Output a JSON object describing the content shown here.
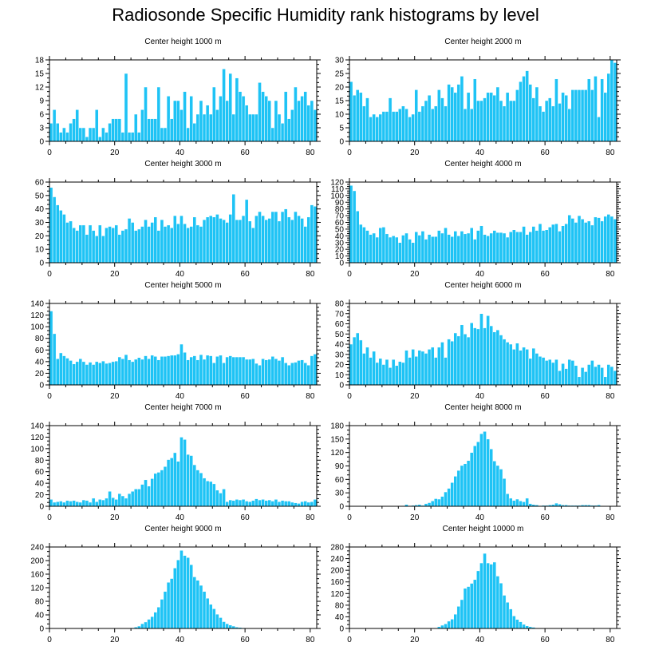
{
  "title": "Radiosonde Specific Humidity rank histograms by level",
  "colors": {
    "bar": "#1ec3f5",
    "bar_edge": "#ffffff",
    "axis": "#000000"
  },
  "chart_data": [
    {
      "type": "bar",
      "title": "Center height 1000 m",
      "x_start": 0,
      "xlim": [
        0,
        82
      ],
      "xticks": [
        0,
        20,
        40,
        60,
        80
      ],
      "ylim": [
        0,
        18
      ],
      "yticks": [
        0,
        3,
        6,
        9,
        12,
        15,
        18
      ],
      "values": [
        4,
        7,
        4,
        2,
        3,
        2,
        4,
        5,
        7,
        3,
        3,
        1,
        3,
        3,
        7,
        1,
        3,
        2,
        4,
        5,
        5,
        5,
        2,
        15,
        2,
        2,
        6,
        2,
        7,
        12,
        5,
        5,
        5,
        12,
        3,
        3,
        10,
        5,
        9,
        9,
        7,
        11,
        3,
        10,
        4,
        6,
        9,
        6,
        8,
        6,
        12,
        7,
        10,
        16,
        9,
        15,
        6,
        14,
        11,
        10,
        8,
        6,
        6,
        6,
        13,
        11,
        10,
        9,
        3,
        9,
        6,
        4,
        11,
        5,
        7,
        12,
        9,
        10,
        11,
        8,
        9,
        7
      ]
    },
    {
      "type": "bar",
      "title": "Center height 2000 m",
      "x_start": 0,
      "xlim": [
        0,
        82
      ],
      "xticks": [
        0,
        20,
        40,
        60,
        80
      ],
      "ylim": [
        0,
        30
      ],
      "yticks": [
        0,
        5,
        10,
        15,
        20,
        25,
        30
      ],
      "values": [
        22,
        17,
        19,
        18,
        13,
        16,
        9,
        10,
        9,
        10,
        11,
        11,
        16,
        11,
        11,
        12,
        13,
        12,
        9,
        10,
        19,
        11,
        13,
        15,
        17,
        12,
        13,
        19,
        16,
        13,
        21,
        20,
        18,
        21,
        24,
        12,
        18,
        12,
        23,
        15,
        15,
        16,
        18,
        18,
        17,
        20,
        15,
        13,
        18,
        15,
        15,
        19,
        22,
        24,
        26,
        21,
        16,
        20,
        13,
        11,
        15,
        16,
        13,
        23,
        14,
        18,
        17,
        12,
        19,
        19,
        19,
        19,
        19,
        23,
        19,
        24,
        9,
        23,
        18,
        25,
        30,
        29
      ]
    },
    {
      "type": "bar",
      "title": "Center height 3000 m",
      "x_start": 0,
      "xlim": [
        0,
        82
      ],
      "xticks": [
        0,
        20,
        40,
        60,
        80
      ],
      "ylim": [
        0,
        60
      ],
      "yticks": [
        0,
        10,
        20,
        30,
        40,
        50,
        60
      ],
      "values": [
        56,
        49,
        43,
        39,
        36,
        30,
        31,
        26,
        24,
        28,
        28,
        21,
        28,
        24,
        20,
        28,
        20,
        26,
        27,
        26,
        28,
        21,
        24,
        25,
        33,
        30,
        24,
        25,
        27,
        32,
        27,
        30,
        34,
        24,
        32,
        27,
        28,
        26,
        35,
        29,
        35,
        29,
        26,
        27,
        34,
        28,
        27,
        32,
        34,
        35,
        34,
        36,
        33,
        32,
        30,
        36,
        51,
        32,
        32,
        35,
        47,
        31,
        26,
        35,
        38,
        35,
        32,
        33,
        38,
        38,
        31,
        38,
        40,
        34,
        32,
        38,
        35,
        33,
        27,
        34,
        43,
        42
      ]
    },
    {
      "type": "bar",
      "title": "Center height 4000 m",
      "x_start": 0,
      "xlim": [
        0,
        82
      ],
      "xticks": [
        0,
        20,
        40,
        60,
        80
      ],
      "ylim": [
        0,
        120
      ],
      "yticks": [
        0,
        10,
        20,
        30,
        40,
        50,
        60,
        70,
        80,
        90,
        100,
        110,
        120
      ],
      "values": [
        115,
        107,
        77,
        57,
        53,
        48,
        42,
        44,
        38,
        52,
        53,
        43,
        38,
        40,
        38,
        30,
        41,
        44,
        35,
        30,
        46,
        41,
        47,
        35,
        42,
        39,
        39,
        48,
        44,
        52,
        42,
        39,
        47,
        40,
        47,
        43,
        44,
        52,
        35,
        48,
        55,
        42,
        40,
        44,
        48,
        45,
        45,
        44,
        38,
        46,
        49,
        46,
        46,
        54,
        42,
        46,
        54,
        48,
        58,
        48,
        49,
        53,
        57,
        58,
        47,
        55,
        58,
        71,
        66,
        60,
        70,
        65,
        60,
        62,
        56,
        68,
        67,
        62,
        69,
        72,
        69,
        65
      ]
    },
    {
      "type": "bar",
      "title": "Center height 5000 m",
      "x_start": 0,
      "xlim": [
        0,
        82
      ],
      "xticks": [
        0,
        20,
        40,
        60,
        80
      ],
      "ylim": [
        0,
        140
      ],
      "yticks": [
        0,
        20,
        40,
        60,
        80,
        100,
        120,
        140
      ],
      "values": [
        127,
        88,
        45,
        55,
        50,
        46,
        42,
        36,
        40,
        45,
        40,
        35,
        39,
        35,
        40,
        38,
        41,
        37,
        38,
        40,
        41,
        48,
        45,
        52,
        43,
        40,
        44,
        47,
        44,
        50,
        45,
        51,
        49,
        43,
        49,
        49,
        50,
        51,
        51,
        53,
        70,
        56,
        43,
        48,
        50,
        43,
        52,
        44,
        51,
        50,
        38,
        49,
        51,
        38,
        48,
        50,
        48,
        48,
        48,
        48,
        44,
        44,
        45,
        37,
        34,
        45,
        43,
        44,
        49,
        45,
        42,
        48,
        38,
        34,
        38,
        39,
        42,
        43,
        38,
        34,
        50,
        53
      ]
    },
    {
      "type": "bar",
      "title": "Center height 6000 m",
      "x_start": 0,
      "xlim": [
        0,
        82
      ],
      "xticks": [
        0,
        20,
        40,
        60,
        80
      ],
      "ylim": [
        0,
        80
      ],
      "yticks": [
        0,
        10,
        20,
        30,
        40,
        50,
        60,
        70,
        80
      ],
      "values": [
        40,
        47,
        51,
        44,
        31,
        37,
        27,
        33,
        22,
        26,
        20,
        25,
        17,
        25,
        19,
        23,
        22,
        34,
        27,
        35,
        28,
        34,
        33,
        31,
        35,
        37,
        27,
        37,
        42,
        27,
        45,
        43,
        51,
        48,
        59,
        50,
        47,
        61,
        56,
        55,
        70,
        56,
        68,
        58,
        52,
        54,
        49,
        45,
        42,
        40,
        35,
        41,
        34,
        37,
        35,
        26,
        36,
        31,
        28,
        27,
        24,
        25,
        22,
        25,
        14,
        21,
        16,
        25,
        24,
        19,
        8,
        17,
        13,
        20,
        24,
        18,
        20,
        17,
        8,
        20,
        18,
        14
      ]
    },
    {
      "type": "bar",
      "title": "Center height 7000 m",
      "x_start": 0,
      "xlim": [
        0,
        82
      ],
      "xticks": [
        0,
        20,
        40,
        60,
        80
      ],
      "ylim": [
        0,
        140
      ],
      "yticks": [
        0,
        20,
        40,
        60,
        80,
        100,
        120,
        140
      ],
      "values": [
        12,
        7,
        8,
        9,
        7,
        10,
        9,
        10,
        8,
        7,
        11,
        10,
        7,
        14,
        8,
        12,
        11,
        14,
        26,
        15,
        12,
        22,
        18,
        14,
        22,
        26,
        30,
        30,
        38,
        46,
        35,
        48,
        57,
        59,
        63,
        69,
        81,
        84,
        93,
        78,
        120,
        116,
        90,
        88,
        72,
        63,
        58,
        49,
        44,
        43,
        39,
        28,
        23,
        30,
        8,
        11,
        10,
        12,
        11,
        12,
        9,
        8,
        10,
        13,
        11,
        12,
        10,
        11,
        9,
        12,
        8,
        10,
        9,
        9,
        7,
        6,
        5,
        8,
        9,
        7,
        8,
        12
      ]
    },
    {
      "type": "bar",
      "title": "Center height 8000 m",
      "x_start": 0,
      "xlim": [
        0,
        82
      ],
      "xticks": [
        0,
        20,
        40,
        60,
        80
      ],
      "ylim": [
        0,
        180
      ],
      "yticks": [
        0,
        30,
        60,
        90,
        120,
        150,
        180
      ],
      "values": [
        0,
        0,
        0,
        0,
        0,
        0,
        0,
        0,
        0,
        0,
        0,
        0,
        0,
        0,
        0,
        0,
        1,
        4,
        1,
        2,
        3,
        4,
        2,
        6,
        8,
        12,
        17,
        16,
        22,
        32,
        40,
        53,
        67,
        80,
        91,
        95,
        102,
        120,
        135,
        144,
        162,
        167,
        150,
        128,
        101,
        91,
        83,
        62,
        28,
        18,
        13,
        16,
        12,
        10,
        18,
        6,
        4,
        3,
        1,
        2,
        2,
        3,
        4,
        7,
        5,
        3,
        3,
        2,
        2,
        2,
        2,
        3,
        3,
        3,
        2,
        2,
        3,
        0,
        0,
        0,
        0,
        0
      ]
    },
    {
      "type": "bar",
      "title": "Center height 9000 m",
      "x_start": 0,
      "xlim": [
        0,
        82
      ],
      "xticks": [
        0,
        20,
        40,
        60,
        80
      ],
      "ylim": [
        0,
        240
      ],
      "yticks": [
        0,
        40,
        80,
        120,
        160,
        200,
        240
      ],
      "values": [
        0,
        0,
        0,
        0,
        0,
        0,
        0,
        0,
        0,
        0,
        0,
        0,
        0,
        0,
        0,
        0,
        0,
        0,
        0,
        0,
        0,
        0,
        1,
        1,
        1,
        2,
        4,
        7,
        14,
        19,
        27,
        35,
        48,
        63,
        86,
        109,
        136,
        147,
        178,
        202,
        230,
        215,
        209,
        188,
        152,
        142,
        127,
        109,
        89,
        71,
        58,
        42,
        32,
        20,
        14,
        10,
        7,
        4,
        3,
        2,
        1,
        1,
        1,
        0,
        0,
        0,
        0,
        0,
        0,
        0,
        0,
        0,
        0,
        0,
        0,
        0,
        0,
        0,
        0,
        0,
        0,
        0
      ]
    },
    {
      "type": "bar",
      "title": "Center height 10000 m",
      "x_start": 0,
      "xlim": [
        0,
        82
      ],
      "xticks": [
        0,
        20,
        40,
        60,
        80
      ],
      "ylim": [
        0,
        280
      ],
      "yticks": [
        0,
        40,
        80,
        120,
        160,
        200,
        240,
        280
      ],
      "values": [
        0,
        0,
        0,
        0,
        0,
        0,
        0,
        0,
        0,
        0,
        0,
        0,
        0,
        0,
        0,
        0,
        0,
        0,
        0,
        0,
        0,
        0,
        0,
        0,
        0,
        1,
        2,
        6,
        11,
        16,
        25,
        32,
        49,
        76,
        99,
        138,
        144,
        155,
        168,
        198,
        225,
        258,
        225,
        221,
        228,
        180,
        156,
        114,
        90,
        67,
        43,
        31,
        23,
        14,
        9,
        6,
        4,
        2,
        2,
        1,
        1,
        1,
        0,
        0,
        0,
        0,
        0,
        0,
        0,
        0,
        0,
        0,
        0,
        0,
        0,
        0,
        0,
        0,
        0,
        0,
        0,
        0
      ]
    }
  ]
}
